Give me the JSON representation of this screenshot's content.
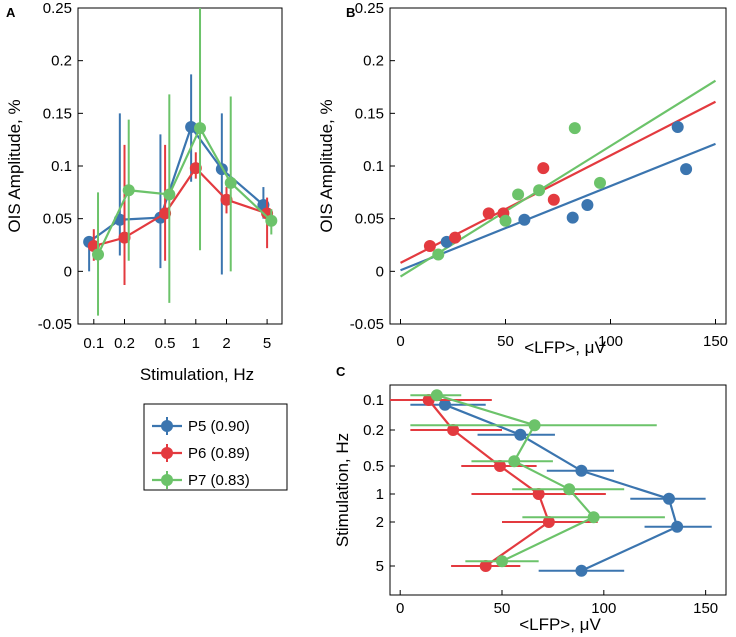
{
  "legend": {
    "entries": [
      {
        "label": "P5 (0.90)",
        "color": "#3b75af"
      },
      {
        "label": "P6 (0.89)",
        "color": "#e33a3f"
      },
      {
        "label": "P7 (0.83)",
        "color": "#6cc36a"
      }
    ]
  },
  "chart_data": [
    {
      "panel": "A",
      "type": "line",
      "xscale": "log",
      "xlabel": "Stimulation, Hz",
      "ylabel": "OIS Amplitude, %",
      "xticks": [
        "0.1",
        "0.2",
        "0.5",
        "1",
        "2",
        "5"
      ],
      "yticks": [
        "-0.05",
        "0",
        "0.05",
        "0.1",
        "0.15",
        "0.2",
        "0.25"
      ],
      "ylim": [
        -0.05,
        0.25
      ],
      "categories": [
        0.1,
        0.2,
        0.5,
        1,
        2,
        5
      ],
      "series": [
        {
          "name": "P5 (0.90)",
          "color": "#3b75af",
          "x": [
            0.09,
            0.18,
            0.45,
            0.9,
            1.8,
            4.6
          ],
          "values": [
            0.028,
            0.049,
            0.051,
            0.137,
            0.097,
            0.063
          ],
          "err_low": [
            0.0,
            0.015,
            0.003,
            0.085,
            -0.003,
            0.05
          ],
          "err_high": [
            0.033,
            0.15,
            0.13,
            0.187,
            0.15,
            0.08
          ]
        },
        {
          "name": "P6 (0.89)",
          "color": "#e33a3f",
          "x": [
            0.1,
            0.2,
            0.5,
            1,
            2,
            5
          ],
          "values": [
            0.024,
            0.032,
            0.055,
            0.098,
            0.068,
            0.055
          ],
          "err_low": [
            0.01,
            -0.013,
            0.01,
            0.088,
            0.055,
            0.022
          ],
          "err_high": [
            0.04,
            0.12,
            0.12,
            0.113,
            0.08,
            0.07
          ]
        },
        {
          "name": "P7 (0.83)",
          "color": "#6cc36a",
          "x": [
            0.11,
            0.22,
            0.55,
            1.1,
            2.2,
            5.5
          ],
          "values": [
            0.016,
            0.077,
            0.073,
            0.136,
            0.084,
            0.048
          ],
          "err_low": [
            -0.042,
            0.01,
            -0.03,
            0.02,
            0.0,
            0.035
          ],
          "err_high": [
            0.075,
            0.144,
            0.168,
            0.25,
            0.166,
            0.059
          ]
        }
      ]
    },
    {
      "panel": "B",
      "type": "scatter",
      "xlabel": "<LFP>, μV",
      "ylabel": "OIS Amplitude, %",
      "xticks": [
        "0",
        "50",
        "100",
        "150"
      ],
      "yticks": [
        "-0.05",
        "0",
        "0.05",
        "0.1",
        "0.15",
        "0.2",
        "0.25"
      ],
      "xlim": [
        -5,
        155
      ],
      "ylim": [
        -0.05,
        0.25
      ],
      "series": [
        {
          "name": "P5 (0.90)",
          "color": "#3b75af",
          "x": [
            22,
            59,
            82,
            89,
            132,
            136
          ],
          "y": [
            0.028,
            0.049,
            0.051,
            0.063,
            0.137,
            0.097
          ],
          "fit": {
            "x": [
              0,
              150
            ],
            "y": [
              0.001,
              0.121
            ]
          }
        },
        {
          "name": "P6 (0.89)",
          "color": "#e33a3f",
          "x": [
            14,
            26,
            42,
            49,
            68,
            73
          ],
          "y": [
            0.024,
            0.032,
            0.055,
            0.055,
            0.098,
            0.068
          ],
          "fit": {
            "x": [
              0,
              150
            ],
            "y": [
              0.008,
              0.161
            ]
          }
        },
        {
          "name": "P7 (0.83)",
          "color": "#6cc36a",
          "x": [
            18,
            50,
            56,
            66,
            83,
            95
          ],
          "y": [
            0.016,
            0.048,
            0.073,
            0.077,
            0.136,
            0.084
          ],
          "fit": {
            "x": [
              0,
              150
            ],
            "y": [
              -0.005,
              0.181
            ]
          }
        }
      ]
    },
    {
      "panel": "C",
      "type": "line",
      "xlabel": "<LFP>, μV",
      "ylabel": "Stimulation, Hz",
      "xticks": [
        "0",
        "50",
        "100",
        "150"
      ],
      "yticks": [
        "0.1",
        "0.2",
        "0.5",
        "1",
        "2",
        "5"
      ],
      "xlim": [
        -5,
        160
      ],
      "categories": [
        "0.1",
        "0.2",
        "0.5",
        "1",
        "2",
        "5"
      ],
      "series": [
        {
          "name": "P5 (0.90)",
          "color": "#3b75af",
          "category_offset": -0.12,
          "values": [
            22,
            59,
            89,
            132,
            136,
            89
          ],
          "err_low": [
            5,
            38,
            72,
            113,
            120,
            68
          ],
          "err_high": [
            42,
            76,
            105,
            150,
            153,
            110
          ]
        },
        {
          "name": "P6 (0.89)",
          "color": "#e33a3f",
          "category_offset": 0,
          "values": [
            14,
            26,
            49,
            68,
            73,
            42
          ],
          "err_low": [
            -5,
            5,
            30,
            35,
            50,
            25
          ],
          "err_high": [
            45,
            50,
            67,
            101,
            97,
            59
          ]
        },
        {
          "name": "P7 (0.83)",
          "color": "#6cc36a",
          "category_offset": 0.12,
          "values": [
            18,
            66,
            56,
            83,
            95,
            50
          ],
          "err_low": [
            5,
            5,
            35,
            55,
            60,
            32
          ],
          "err_high": [
            30,
            126,
            75,
            110,
            130,
            68
          ]
        }
      ]
    }
  ]
}
